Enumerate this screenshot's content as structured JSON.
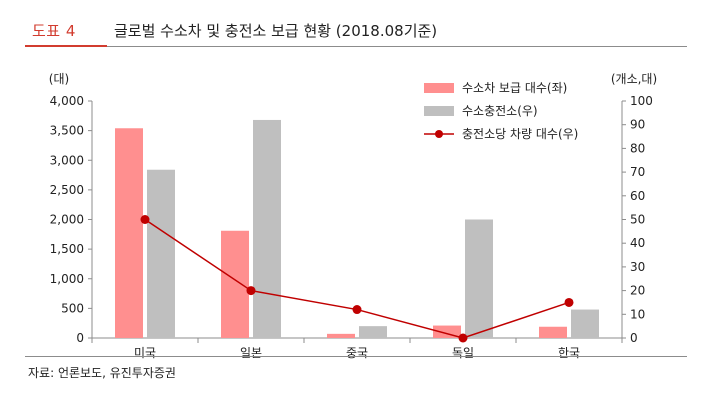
{
  "figure": {
    "number_label": "도표 4",
    "title": "글로벌 수소차 및 충전소 보급 현황 (2018.08기준)",
    "source": "자료: 언론보도, 유진투자증권",
    "colors": {
      "accent": "#d23c2f",
      "rule": "#8c8c8c"
    }
  },
  "chart_data": {
    "type": "bar",
    "categories": [
      "미국",
      "일본",
      "중국",
      "독일",
      "한국"
    ],
    "series": [
      {
        "name": "수소차 보급 대수(좌)",
        "type": "bar",
        "axis": "left",
        "color": "#ff8f8f",
        "values": [
          3540,
          1810,
          70,
          210,
          190
        ]
      },
      {
        "name": "수소충전소(우)",
        "type": "bar",
        "axis": "right",
        "color": "#bfbfbf",
        "values": [
          71,
          92,
          5,
          50,
          12
        ]
      },
      {
        "name": "충전소당 차량 대수(우)",
        "type": "line",
        "axis": "right",
        "color": "#c00000",
        "values": [
          50,
          20,
          12,
          0,
          15
        ]
      }
    ],
    "y_left": {
      "unit_label": "(대)",
      "ylim": [
        0,
        4000
      ],
      "ticks": [
        "0",
        "500",
        "1,000",
        "1,500",
        "2,000",
        "2,500",
        "3,000",
        "3,500",
        "4,000"
      ]
    },
    "y_right": {
      "unit_label": "(개소,대)",
      "ylim": [
        0,
        100
      ],
      "ticks": [
        "0",
        "10",
        "20",
        "30",
        "40",
        "50",
        "60",
        "70",
        "80",
        "90",
        "100"
      ]
    },
    "legend_position": "top-right",
    "grid": false
  }
}
